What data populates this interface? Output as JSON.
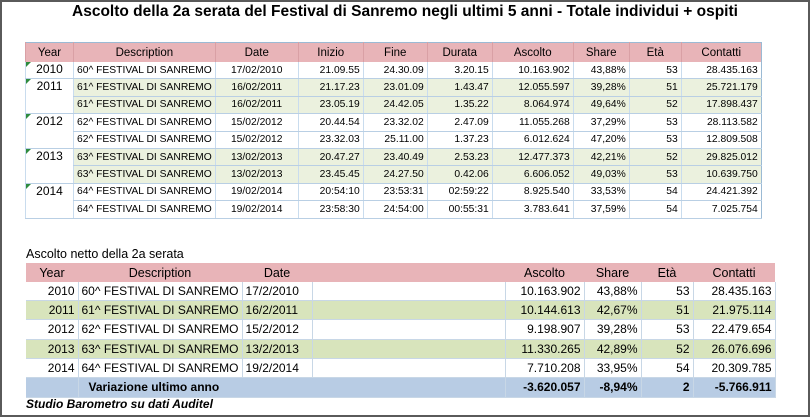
{
  "title": "Ascolto della 2a serata del Festival di Sanremo negli ultimi 5 anni - Totale individui + ospiti",
  "table1": {
    "headers": [
      "Year",
      "Description",
      "Date",
      "Inizio",
      "Fine",
      "Durata",
      "Ascolto",
      "Share",
      "Età",
      "Contatti"
    ],
    "groups": [
      {
        "year": "2010",
        "rows": [
          [
            "60^ FESTIVAL DI SANREMO",
            "17/02/2010",
            "21.09.55",
            "24.30.09",
            "3.20.15",
            "10.163.902",
            "43,88%",
            "53",
            "28.435.163"
          ]
        ]
      },
      {
        "year": "2011",
        "rows": [
          [
            "61^ FESTIVAL DI SANREMO",
            "16/02/2011",
            "21.17.23",
            "23.01.09",
            "1.43.47",
            "12.055.597",
            "39,28%",
            "51",
            "25.721.179"
          ],
          [
            "61^ FESTIVAL DI SANREMO",
            "16/02/2011",
            "23.05.19",
            "24.42.05",
            "1.35.22",
            "8.064.974",
            "49,64%",
            "52",
            "17.898.437"
          ]
        ]
      },
      {
        "year": "2012",
        "rows": [
          [
            "62^ FESTIVAL DI SANREMO",
            "15/02/2012",
            "20.44.54",
            "23.32.02",
            "2.47.09",
            "11.055.268",
            "37,29%",
            "53",
            "28.113.582"
          ],
          [
            "62^ FESTIVAL DI SANREMO",
            "15/02/2012",
            "23.32.03",
            "25.11.00",
            "1.37.23",
            "6.012.624",
            "47,20%",
            "53",
            "12.809.508"
          ]
        ]
      },
      {
        "year": "2013",
        "rows": [
          [
            "63^ FESTIVAL DI SANREMO",
            "13/02/2013",
            "20.47.27",
            "23.40.49",
            "2.53.23",
            "12.477.373",
            "42,21%",
            "52",
            "29.825.012"
          ],
          [
            "63^ FESTIVAL DI SANREMO",
            "13/02/2013",
            "23.45.45",
            "24.27.50",
            "0.42.06",
            "6.606.052",
            "49,03%",
            "53",
            "10.639.750"
          ]
        ]
      },
      {
        "year": "2014",
        "rows": [
          [
            "64^ FESTIVAL DI SANREMO",
            "19/02/2014",
            "20:54:10",
            "23:53:31",
            "02:59:22",
            "8.925.540",
            "33,53%",
            "54",
            "24.421.392"
          ],
          [
            "64^ FESTIVAL DI SANREMO",
            "19/02/2014",
            "23:58:30",
            "24:54:00",
            "00:55:31",
            "3.783.641",
            "37,59%",
            "54",
            "7.025.754"
          ]
        ]
      }
    ]
  },
  "subtitle": "Ascolto netto della 2a serata",
  "table2": {
    "headers": [
      "Year",
      "Description",
      "Date",
      "",
      "Ascolto",
      "Share",
      "Età",
      "Contatti"
    ],
    "rows": [
      [
        "2010",
        "60^ FESTIVAL DI SANREMO",
        "17/2/2010",
        "",
        "10.163.902",
        "43,88%",
        "53",
        "28.435.163"
      ],
      [
        "2011",
        "61^ FESTIVAL DI SANREMO",
        "16/2/2011",
        "",
        "10.144.613",
        "42,67%",
        "51",
        "21.975.114"
      ],
      [
        "2012",
        "62^ FESTIVAL DI SANREMO",
        "15/2/2012",
        "",
        "9.198.907",
        "39,28%",
        "53",
        "22.479.654"
      ],
      [
        "2013",
        "63^ FESTIVAL DI SANREMO",
        "13/2/2013",
        "",
        "11.330.265",
        "42,89%",
        "52",
        "26.076.696"
      ],
      [
        "2014",
        "64^ FESTIVAL DI SANREMO",
        "19/2/2014",
        "",
        "7.710.208",
        "33,95%",
        "54",
        "20.309.785"
      ]
    ],
    "footer": {
      "label": "Variazione ultimo anno",
      "ascolto": "-3.620.057",
      "share": "-8,94%",
      "eta": "2",
      "contatti": "-5.766.911"
    }
  },
  "source": "Studio Barometro su dati Auditel",
  "colors": {
    "header": "#e8b4b8",
    "band": "#ebf1de",
    "band2": "#d8e4bc",
    "footer": "#b8cce4"
  }
}
